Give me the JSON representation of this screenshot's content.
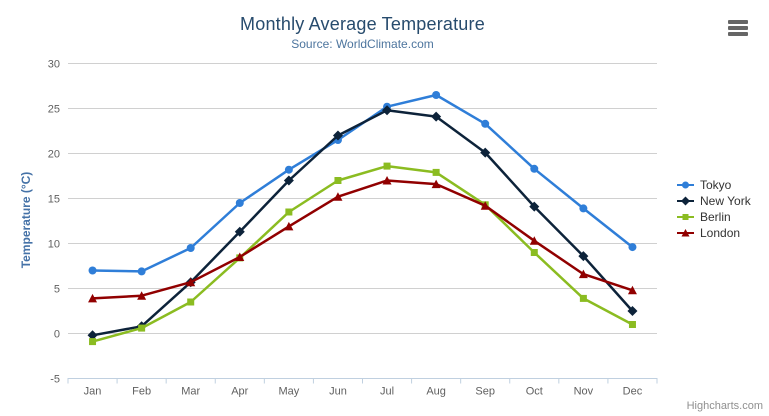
{
  "chart_data": {
    "type": "line",
    "title": "Monthly Average Temperature",
    "subtitle": "Source: WorldClimate.com",
    "xlabel": "",
    "ylabel": "Temperature (°C)",
    "categories": [
      "Jan",
      "Feb",
      "Mar",
      "Apr",
      "May",
      "Jun",
      "Jul",
      "Aug",
      "Sep",
      "Oct",
      "Nov",
      "Dec"
    ],
    "ylim": [
      -5,
      30
    ],
    "ytick_step": 5,
    "grid": true,
    "legend_position": "right-middle-vertical",
    "series": [
      {
        "name": "Tokyo",
        "color": "#2f7ed8",
        "marker": "circle",
        "values": [
          7.0,
          6.9,
          9.5,
          14.5,
          18.2,
          21.5,
          25.2,
          26.5,
          23.3,
          18.3,
          13.9,
          9.6
        ]
      },
      {
        "name": "New York",
        "color": "#0d233a",
        "marker": "diamond",
        "values": [
          -0.2,
          0.8,
          5.7,
          11.3,
          17.0,
          22.0,
          24.8,
          24.1,
          20.1,
          14.1,
          8.6,
          2.5
        ]
      },
      {
        "name": "Berlin",
        "color": "#8bbc21",
        "marker": "square",
        "values": [
          -0.9,
          0.6,
          3.5,
          8.4,
          13.5,
          17.0,
          18.6,
          17.9,
          14.3,
          9.0,
          3.9,
          1.0
        ]
      },
      {
        "name": "London",
        "color": "#910000",
        "marker": "triangle",
        "values": [
          3.9,
          4.2,
          5.7,
          8.5,
          11.9,
          15.2,
          17.0,
          16.6,
          14.2,
          10.3,
          6.6,
          4.8
        ]
      }
    ]
  },
  "credits": {
    "label": "Highcharts.com"
  },
  "export_menu": {
    "icon": "hamburger-icon"
  },
  "colors": {
    "background": "#ffffff",
    "title": "#274b6d",
    "subtitle": "#4d759e",
    "y_axis_title": "#4572a7",
    "tick_label": "#606060",
    "grid_line": "#d0d0d0",
    "axis_line": "#c0d0e0",
    "legend_text": "#333333",
    "credits": "#909090",
    "menu_icon": "#666666"
  }
}
